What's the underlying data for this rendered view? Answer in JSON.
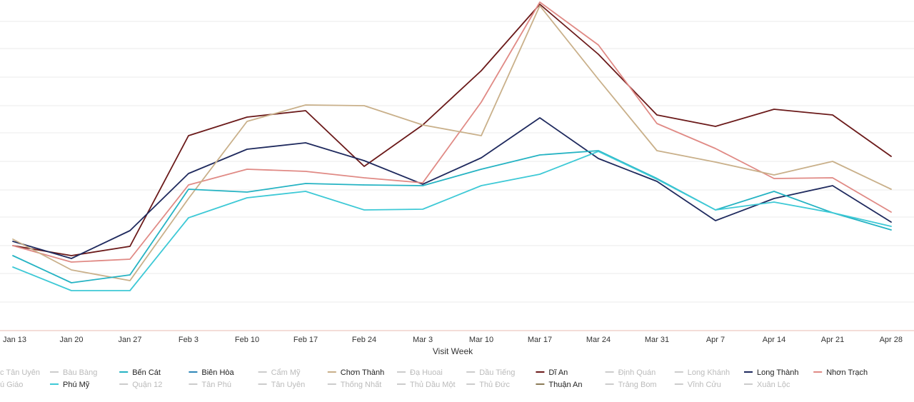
{
  "chart_data": {
    "type": "line",
    "xlabel": "Visit Week",
    "ylabel": "",
    "title": "",
    "categories": [
      "Jan 13",
      "Jan 20",
      "Jan 27",
      "Feb 3",
      "Feb 10",
      "Feb 17",
      "Feb 24",
      "Mar 3",
      "Mar 10",
      "Mar 17",
      "Mar 24",
      "Mar 31",
      "Apr 7",
      "Apr 14",
      "Apr 21",
      "Apr 28"
    ],
    "ylim": [
      0,
      460
    ],
    "grid": true,
    "legend_position": "bottom",
    "series": [
      {
        "name": "Dĩ An",
        "color": "#6b1a1a",
        "values": [
          119,
          105,
          118,
          273,
          299,
          308,
          230,
          288,
          364,
          457,
          387,
          302,
          286,
          310,
          302,
          244
        ]
      },
      {
        "name": "Long Thành",
        "color": "#1f2a5e",
        "values": [
          125,
          101,
          140,
          220,
          254,
          263,
          238,
          205,
          242,
          298,
          241,
          209,
          154,
          185,
          203,
          152
        ]
      },
      {
        "name": "Nhơn Trạch",
        "color": "#e08a85",
        "values": [
          119,
          96,
          100,
          204,
          226,
          223,
          214,
          207,
          320,
          460,
          400,
          290,
          255,
          213,
          214,
          166
        ]
      },
      {
        "name": "Chơn Thành",
        "color": "#c9b08a",
        "values": [
          128,
          85,
          70,
          185,
          293,
          316,
          315,
          288,
          273,
          455,
          352,
          252,
          236,
          218,
          237,
          198
        ]
      },
      {
        "name": "Bến Cát",
        "color": "#25b3c3",
        "values": [
          105,
          67,
          78,
          198,
          194,
          206,
          204,
          203,
          226,
          246,
          252,
          213,
          169,
          195,
          165,
          141
        ]
      },
      {
        "name": "Phú Mỹ",
        "color": "#3ec9d6",
        "values": [
          89,
          56,
          56,
          158,
          186,
          195,
          169,
          170,
          203,
          219,
          251,
          212,
          169,
          180,
          165,
          146
        ]
      }
    ],
    "legend": {
      "row1": [
        {
          "label": "c Tân Uyên",
          "color": "#cccccc",
          "active": false
        },
        {
          "label": "Bàu Bàng",
          "color": "#cccccc",
          "active": false
        },
        {
          "label": "Bến Cát",
          "color": "#25b3c3",
          "active": true
        },
        {
          "label": "Biên Hòa",
          "color": "#2e86b8",
          "active": true
        },
        {
          "label": "Cẩm Mỹ",
          "color": "#cccccc",
          "active": false
        },
        {
          "label": "Chơn Thành",
          "color": "#c9b08a",
          "active": true
        },
        {
          "label": "Đạ Huoai",
          "color": "#cccccc",
          "active": false
        },
        {
          "label": "Dầu Tiếng",
          "color": "#cccccc",
          "active": false
        },
        {
          "label": "Dĩ An",
          "color": "#6b1a1a",
          "active": true
        },
        {
          "label": "Định Quán",
          "color": "#cccccc",
          "active": false
        },
        {
          "label": "Long Khánh",
          "color": "#cccccc",
          "active": false
        },
        {
          "label": "Long Thành",
          "color": "#1f2a5e",
          "active": true
        },
        {
          "label": "Nhơn Trạch",
          "color": "#e08a85",
          "active": true
        }
      ],
      "row2": [
        {
          "label": "ú Giáo",
          "color": "#cccccc",
          "active": false
        },
        {
          "label": "Phú Mỹ",
          "color": "#3ec9d6",
          "active": true
        },
        {
          "label": "Quận 12",
          "color": "#cccccc",
          "active": false
        },
        {
          "label": "Tân Phú",
          "color": "#cccccc",
          "active": false
        },
        {
          "label": "Tân Uyên",
          "color": "#cccccc",
          "active": false
        },
        {
          "label": "Thống Nhất",
          "color": "#cccccc",
          "active": false
        },
        {
          "label": "Thủ Dầu Một",
          "color": "#cccccc",
          "active": false
        },
        {
          "label": "Thủ Đức",
          "color": "#cccccc",
          "active": false
        },
        {
          "label": "Thuận An",
          "color": "#8b7a56",
          "active": true
        },
        {
          "label": "Trảng Bom",
          "color": "#cccccc",
          "active": false
        },
        {
          "label": "Vĩnh Cửu",
          "color": "#cccccc",
          "active": false
        },
        {
          "label": "Xuân Lộc",
          "color": "#cccccc",
          "active": false
        }
      ]
    }
  }
}
